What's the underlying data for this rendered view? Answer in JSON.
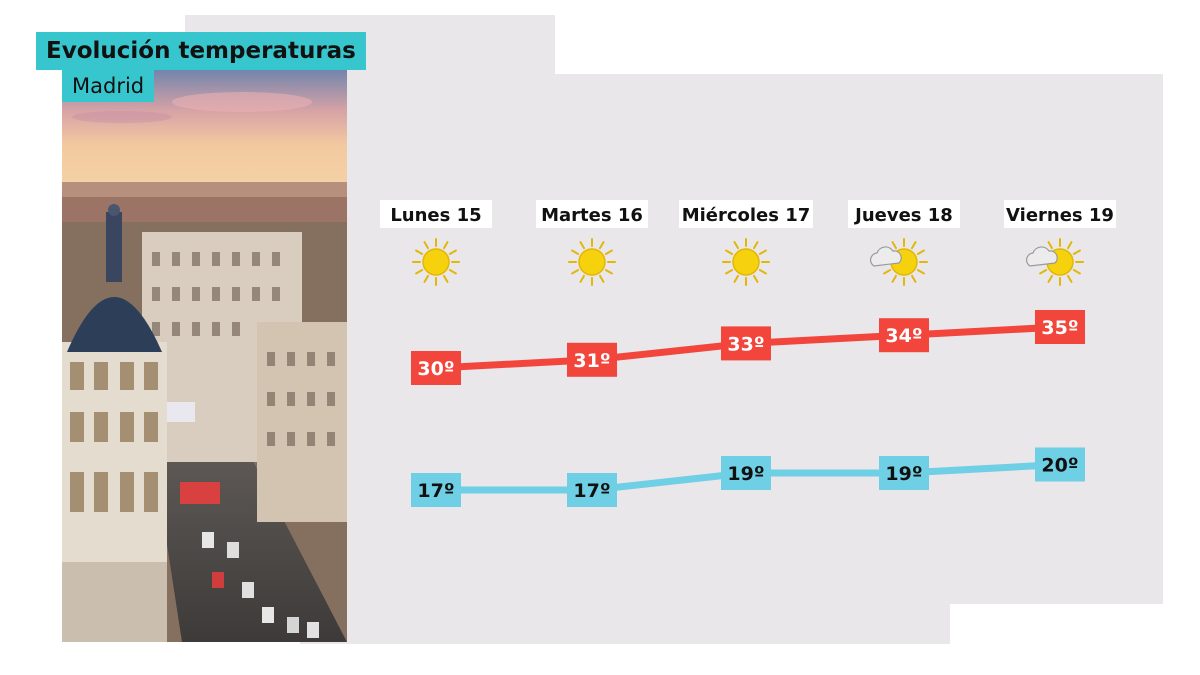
{
  "header": {
    "title": "Evolución temperaturas",
    "subtitle": "Madrid"
  },
  "colors": {
    "max": "#f2463c",
    "min": "#6fcfe4",
    "accent": "#37c6cd",
    "panel": "#e9e7ea",
    "sun": "#f5d10e"
  },
  "chart_data": {
    "type": "line",
    "title": "Evolución temperaturas",
    "subtitle": "Madrid",
    "categories": [
      "Lunes 15",
      "Martes 16",
      "Miércoles 17",
      "Jueves 18",
      "Viernes 19"
    ],
    "icons": [
      "sun-icon",
      "sun-icon",
      "sun-icon",
      "sun-cloud-icon",
      "sun-cloud-icon"
    ],
    "series": [
      {
        "values": [
          30,
          31,
          33,
          34,
          35
        ],
        "labels": [
          "30º",
          "31º",
          "33º",
          "34º",
          "35º"
        ]
      },
      {
        "values": [
          17,
          17,
          19,
          19,
          20
        ],
        "labels": [
          "17º",
          "17º",
          "19º",
          "19º",
          "20º"
        ]
      }
    ],
    "grid": false,
    "legend": "none"
  }
}
